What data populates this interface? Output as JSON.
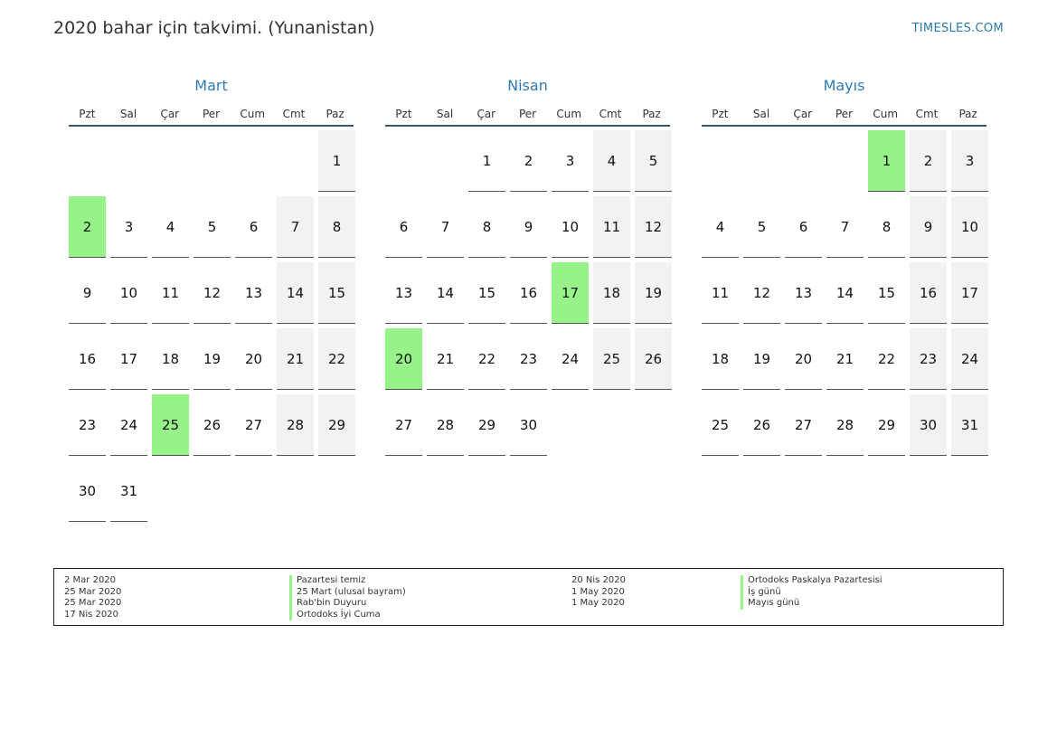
{
  "header": {
    "title": "2020 bahar için takvimi. (Yunanistan)",
    "site": "TIMESLES.COM"
  },
  "weekdays": [
    "Pzt",
    "Sal",
    "Çar",
    "Per",
    "Cum",
    "Cmt",
    "Paz"
  ],
  "colors": {
    "holiday": "#98f28a",
    "weekend": "#f2f2f2",
    "month_title": "#2f7ab8"
  },
  "months": [
    {
      "name": "Mart",
      "offset": 6,
      "days": 31,
      "holidays": [
        2,
        25
      ]
    },
    {
      "name": "Nisan",
      "offset": 2,
      "days": 30,
      "holidays": [
        17,
        20
      ]
    },
    {
      "name": "Mayıs",
      "offset": 4,
      "days": 31,
      "holidays": [
        1
      ]
    }
  ],
  "legend": {
    "left_dates": [
      "2 Mar 2020",
      "25 Mar 2020",
      "25 Mar 2020",
      "17 Nis 2020"
    ],
    "left_names": [
      "Pazartesi temiz",
      "25 Mart (ulusal bayram)",
      "Rab'bin Duyuru",
      "Ortodoks İyi Cuma"
    ],
    "right_dates": [
      "20 Nis 2020",
      "1 May 2020",
      "1 May 2020"
    ],
    "right_names": [
      "Ortodoks Paskalya Pazartesisi",
      "İş günü",
      "Mayıs günü"
    ]
  }
}
